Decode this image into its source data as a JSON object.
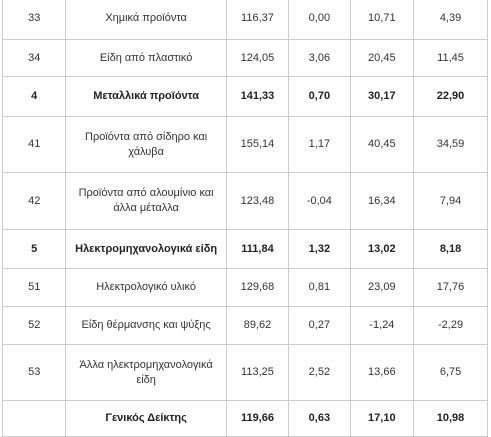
{
  "table": {
    "rows": [
      {
        "code": "33",
        "name": "Χημικά προϊόντα",
        "v1": "116,37",
        "v2": "0,00",
        "v3": "10,71",
        "v4": "4,39",
        "bold": false,
        "h": 42
      },
      {
        "code": "34",
        "name": "Είδη από πλαστικό",
        "v1": "124,05",
        "v2": "3,06",
        "v3": "20,45",
        "v4": "11,45",
        "bold": false,
        "h": 37
      },
      {
        "code": "4",
        "name": "Μεταλλικά προϊόντα",
        "v1": "141,33",
        "v2": "0,70",
        "v3": "30,17",
        "v4": "22,90",
        "bold": true,
        "h": 40
      },
      {
        "code": "41",
        "name": "Προϊόντα από σίδηρο και χάλυβα",
        "v1": "155,14",
        "v2": "1,17",
        "v3": "40,45",
        "v4": "34,59",
        "bold": false,
        "h": 56
      },
      {
        "code": "42",
        "name": "Προϊόντα από αλουμίνιο και άλλα μέταλλα",
        "v1": "123,48",
        "v2": "-0,04",
        "v3": "16,34",
        "v4": "7,94",
        "bold": false,
        "h": 57
      },
      {
        "code": "5",
        "name": "Ηλεκτρομηχανολογικά είδη",
        "v1": "111,84",
        "v2": "1,32",
        "v3": "13,02",
        "v4": "8,18",
        "bold": true,
        "h": 39
      },
      {
        "code": "51",
        "name": "Ηλεκτρολογικό υλικό",
        "v1": "129,68",
        "v2": "0,81",
        "v3": "23,09",
        "v4": "17,76",
        "bold": false,
        "h": 38
      },
      {
        "code": "52",
        "name": "Είδη θέρμανσης και ψύξης",
        "v1": "89,62",
        "v2": "0,27",
        "v3": "-1,24",
        "v4": "-2,29",
        "bold": false,
        "h": 38
      },
      {
        "code": "53",
        "name": "Άλλα ηλεκτρομηχανολογικά είδη",
        "v1": "113,25",
        "v2": "2,52",
        "v3": "13,66",
        "v4": "6,75",
        "bold": false,
        "h": 56
      },
      {
        "code": "",
        "name": "Γενικός Δείκτης",
        "v1": "119,66",
        "v2": "0,63",
        "v3": "17,10",
        "v4": "10,98",
        "bold": true,
        "h": 36
      }
    ]
  }
}
